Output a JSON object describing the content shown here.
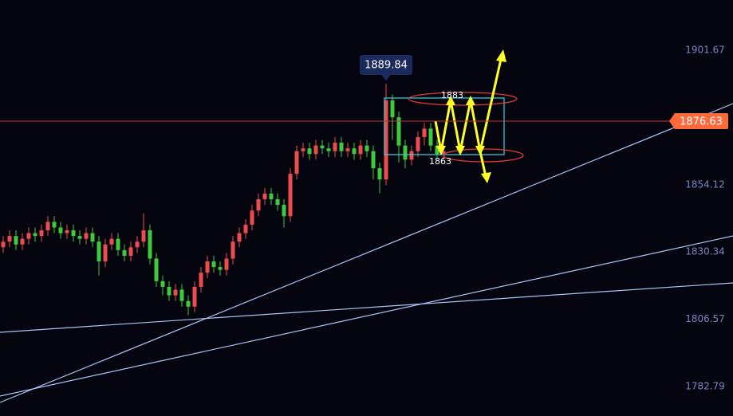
{
  "chart_data": {
    "type": "candlestick",
    "open": [
      1832,
      1834,
      1836,
      1833,
      1835,
      1837,
      1836,
      1838,
      1841,
      1839,
      1837,
      1838,
      1836,
      1835,
      1837,
      1834,
      1827,
      1833,
      1835,
      1831,
      1829,
      1832,
      1834,
      1838,
      1828,
      1820,
      1818,
      1815,
      1817,
      1813,
      1811,
      1818,
      1823,
      1827,
      1825,
      1824,
      1828,
      1834,
      1837,
      1840,
      1845,
      1849,
      1851,
      1849,
      1847,
      1843,
      1858,
      1866,
      1867,
      1865,
      1868,
      1867,
      1866,
      1869,
      1866,
      1867,
      1865,
      1868,
      1866,
      1860,
      1856,
      1884,
      1878,
      1868,
      1863,
      1866,
      1871,
      1874,
      1868,
      1865
    ],
    "high": [
      1836,
      1838,
      1838,
      1837,
      1839,
      1839,
      1840,
      1843,
      1843,
      1841,
      1840,
      1840,
      1838,
      1839,
      1839,
      1836,
      1835,
      1837,
      1837,
      1833,
      1834,
      1836,
      1844,
      1840,
      1830,
      1822,
      1820,
      1819,
      1819,
      1815,
      1820,
      1825,
      1829,
      1829,
      1827,
      1830,
      1836,
      1839,
      1842,
      1847,
      1851,
      1853,
      1853,
      1851,
      1849,
      1860,
      1868,
      1869,
      1869,
      1870,
      1870,
      1869,
      1871,
      1871,
      1869,
      1869,
      1870,
      1870,
      1868,
      1862,
      1889.84,
      1886,
      1880,
      1870,
      1868,
      1873,
      1876,
      1876,
      1870,
      1868
    ],
    "low": [
      1830,
      1832,
      1831,
      1831,
      1833,
      1834,
      1834,
      1836,
      1837,
      1835,
      1835,
      1834,
      1833,
      1833,
      1832,
      1822,
      1825,
      1831,
      1829,
      1827,
      1827,
      1830,
      1832,
      1826,
      1818,
      1815,
      1813,
      1813,
      1811,
      1808,
      1809,
      1816,
      1821,
      1823,
      1822,
      1822,
      1826,
      1832,
      1835,
      1838,
      1843,
      1847,
      1847,
      1845,
      1839,
      1841,
      1856,
      1864,
      1863,
      1863,
      1865,
      1864,
      1864,
      1864,
      1864,
      1863,
      1863,
      1864,
      1856,
      1851,
      1854,
      1870,
      1862,
      1860,
      1861,
      1864,
      1868,
      1866,
      1863,
      1863
    ],
    "close": [
      1834,
      1836,
      1833,
      1835,
      1837,
      1836,
      1838,
      1841,
      1839,
      1837,
      1838,
      1836,
      1835,
      1837,
      1834,
      1827,
      1833,
      1835,
      1831,
      1829,
      1832,
      1834,
      1838,
      1828,
      1820,
      1818,
      1815,
      1817,
      1813,
      1811,
      1818,
      1823,
      1827,
      1825,
      1824,
      1828,
      1834,
      1837,
      1840,
      1845,
      1849,
      1851,
      1849,
      1847,
      1843,
      1858,
      1866,
      1867,
      1865,
      1868,
      1867,
      1866,
      1869,
      1866,
      1867,
      1865,
      1868,
      1866,
      1860,
      1856,
      1884,
      1878,
      1868,
      1863,
      1866,
      1871,
      1874,
      1868,
      1865,
      1866
    ],
    "up_color": "#ee4c4c",
    "down_color": "#3fc93f",
    "last_price": 1876.63,
    "ylim": [
      1772.3,
      1919.5
    ],
    "yticks": [
      1901.67,
      1854.12,
      1830.34,
      1806.57,
      1782.79
    ],
    "annotations": [
      "1883",
      "1863"
    ]
  }
}
